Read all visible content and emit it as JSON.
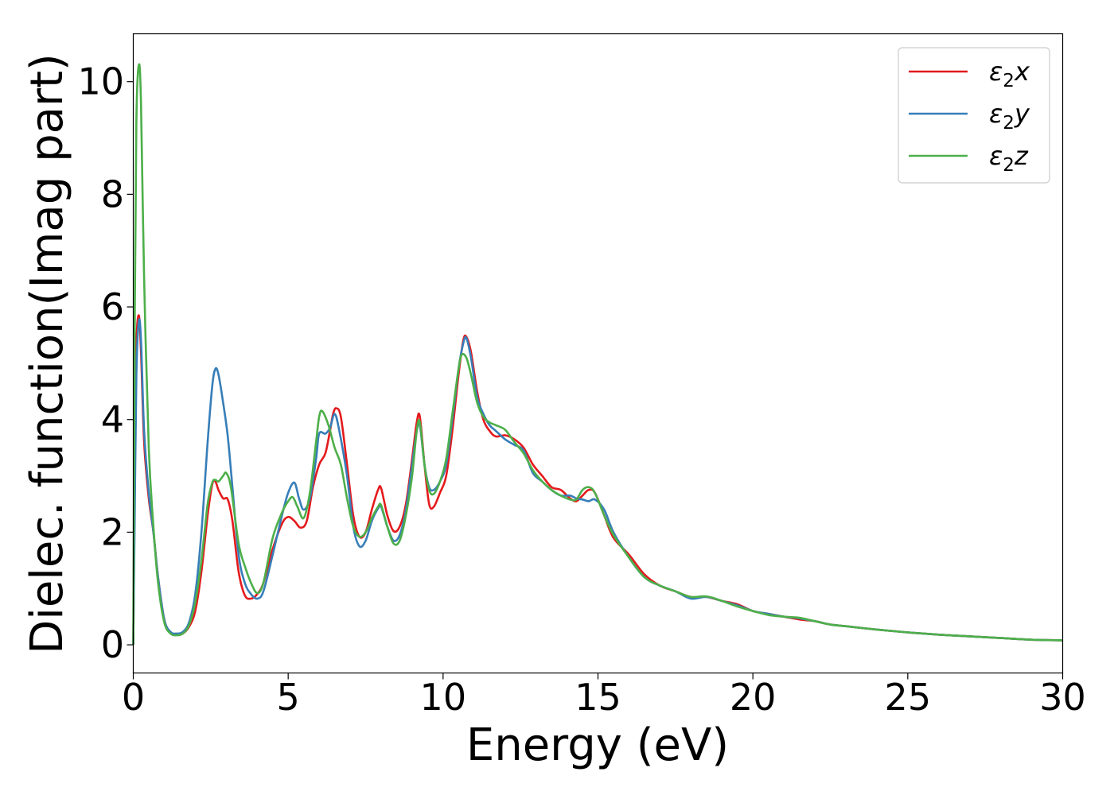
{
  "chart_data": {
    "type": "line",
    "title": "",
    "xlabel": "Energy (eV)",
    "ylabel": "Dielec. function(Imag part)",
    "xlim": [
      0,
      30
    ],
    "ylim": [
      -0.5,
      10.85
    ],
    "xticks": [
      0,
      5,
      10,
      15,
      20,
      25,
      30
    ],
    "yticks": [
      0,
      2,
      4,
      6,
      8,
      10
    ],
    "grid": false,
    "legend": {
      "placement": "top-right",
      "entries": [
        "ε2x",
        "ε2y",
        "ε2z"
      ]
    },
    "series": [
      {
        "name": "ε2x",
        "color": "#e41a1c",
        "points": [
          [
            0,
            0
          ],
          [
            0.05,
            3.0
          ],
          [
            0.1,
            5.3
          ],
          [
            0.18,
            5.85
          ],
          [
            0.25,
            5.2
          ],
          [
            0.35,
            3.6
          ],
          [
            0.5,
            2.6
          ],
          [
            0.65,
            2.0
          ],
          [
            0.8,
            1.2
          ],
          [
            1.0,
            0.45
          ],
          [
            1.2,
            0.22
          ],
          [
            1.4,
            0.18
          ],
          [
            1.6,
            0.2
          ],
          [
            1.8,
            0.32
          ],
          [
            2.0,
            0.6
          ],
          [
            2.2,
            1.3
          ],
          [
            2.4,
            2.3
          ],
          [
            2.55,
            2.85
          ],
          [
            2.65,
            2.9
          ],
          [
            2.75,
            2.75
          ],
          [
            2.9,
            2.6
          ],
          [
            3.05,
            2.58
          ],
          [
            3.2,
            2.2
          ],
          [
            3.4,
            1.3
          ],
          [
            3.6,
            0.88
          ],
          [
            3.8,
            0.82
          ],
          [
            4.0,
            0.9
          ],
          [
            4.2,
            1.1
          ],
          [
            4.5,
            1.7
          ],
          [
            4.8,
            2.15
          ],
          [
            5.0,
            2.27
          ],
          [
            5.2,
            2.2
          ],
          [
            5.4,
            2.08
          ],
          [
            5.6,
            2.2
          ],
          [
            5.8,
            2.8
          ],
          [
            6.0,
            3.2
          ],
          [
            6.2,
            3.4
          ],
          [
            6.35,
            3.8
          ],
          [
            6.45,
            4.1
          ],
          [
            6.55,
            4.2
          ],
          [
            6.7,
            4.05
          ],
          [
            6.9,
            3.2
          ],
          [
            7.1,
            2.3
          ],
          [
            7.3,
            1.92
          ],
          [
            7.5,
            2.0
          ],
          [
            7.7,
            2.4
          ],
          [
            7.9,
            2.75
          ],
          [
            8.0,
            2.78
          ],
          [
            8.2,
            2.3
          ],
          [
            8.4,
            2.02
          ],
          [
            8.6,
            2.1
          ],
          [
            8.8,
            2.5
          ],
          [
            9.0,
            3.3
          ],
          [
            9.15,
            3.95
          ],
          [
            9.25,
            4.05
          ],
          [
            9.4,
            3.2
          ],
          [
            9.55,
            2.5
          ],
          [
            9.7,
            2.45
          ],
          [
            9.9,
            2.7
          ],
          [
            10.1,
            3.0
          ],
          [
            10.3,
            3.8
          ],
          [
            10.5,
            4.8
          ],
          [
            10.65,
            5.4
          ],
          [
            10.75,
            5.47
          ],
          [
            10.9,
            5.2
          ],
          [
            11.1,
            4.5
          ],
          [
            11.3,
            4.0
          ],
          [
            11.5,
            3.8
          ],
          [
            11.7,
            3.7
          ],
          [
            12.0,
            3.72
          ],
          [
            12.3,
            3.65
          ],
          [
            12.6,
            3.5
          ],
          [
            12.9,
            3.2
          ],
          [
            13.2,
            3.0
          ],
          [
            13.5,
            2.8
          ],
          [
            13.8,
            2.75
          ],
          [
            14.1,
            2.6
          ],
          [
            14.3,
            2.55
          ],
          [
            14.5,
            2.65
          ],
          [
            14.7,
            2.75
          ],
          [
            14.9,
            2.7
          ],
          [
            15.2,
            2.3
          ],
          [
            15.5,
            1.9
          ],
          [
            16.0,
            1.6
          ],
          [
            16.5,
            1.25
          ],
          [
            17.0,
            1.05
          ],
          [
            17.5,
            0.95
          ],
          [
            18.0,
            0.85
          ],
          [
            18.5,
            0.85
          ],
          [
            19.0,
            0.78
          ],
          [
            19.5,
            0.72
          ],
          [
            20.0,
            0.6
          ],
          [
            20.5,
            0.55
          ],
          [
            21.0,
            0.5
          ],
          [
            21.5,
            0.45
          ],
          [
            22.0,
            0.42
          ],
          [
            22.5,
            0.36
          ],
          [
            23.0,
            0.33
          ],
          [
            24.0,
            0.27
          ],
          [
            25.0,
            0.22
          ],
          [
            26.0,
            0.18
          ],
          [
            27.0,
            0.15
          ],
          [
            28.0,
            0.12
          ],
          [
            29.0,
            0.09
          ],
          [
            30.0,
            0.08
          ]
        ]
      },
      {
        "name": "ε2y",
        "color": "#377eb8",
        "points": [
          [
            0,
            0
          ],
          [
            0.05,
            2.5
          ],
          [
            0.1,
            4.8
          ],
          [
            0.18,
            5.75
          ],
          [
            0.25,
            5.4
          ],
          [
            0.35,
            3.8
          ],
          [
            0.5,
            2.7
          ],
          [
            0.65,
            2.0
          ],
          [
            0.8,
            1.2
          ],
          [
            1.0,
            0.45
          ],
          [
            1.2,
            0.23
          ],
          [
            1.4,
            0.2
          ],
          [
            1.6,
            0.23
          ],
          [
            1.8,
            0.4
          ],
          [
            2.0,
            0.9
          ],
          [
            2.2,
            2.0
          ],
          [
            2.4,
            3.6
          ],
          [
            2.55,
            4.6
          ],
          [
            2.65,
            4.9
          ],
          [
            2.75,
            4.8
          ],
          [
            2.9,
            4.3
          ],
          [
            3.05,
            3.7
          ],
          [
            3.2,
            2.8
          ],
          [
            3.4,
            1.6
          ],
          [
            3.6,
            1.1
          ],
          [
            3.8,
            0.9
          ],
          [
            4.0,
            0.82
          ],
          [
            4.2,
            0.95
          ],
          [
            4.5,
            1.6
          ],
          [
            4.8,
            2.3
          ],
          [
            5.0,
            2.7
          ],
          [
            5.2,
            2.88
          ],
          [
            5.35,
            2.6
          ],
          [
            5.5,
            2.4
          ],
          [
            5.7,
            2.6
          ],
          [
            5.9,
            3.3
          ],
          [
            6.0,
            3.75
          ],
          [
            6.2,
            3.75
          ],
          [
            6.35,
            3.85
          ],
          [
            6.5,
            4.1
          ],
          [
            6.65,
            3.8
          ],
          [
            6.9,
            3.0
          ],
          [
            7.1,
            2.1
          ],
          [
            7.3,
            1.75
          ],
          [
            7.5,
            1.85
          ],
          [
            7.7,
            2.2
          ],
          [
            7.9,
            2.42
          ],
          [
            8.0,
            2.45
          ],
          [
            8.2,
            2.1
          ],
          [
            8.4,
            1.85
          ],
          [
            8.6,
            1.95
          ],
          [
            8.8,
            2.4
          ],
          [
            9.0,
            3.2
          ],
          [
            9.15,
            3.8
          ],
          [
            9.25,
            3.9
          ],
          [
            9.4,
            3.2
          ],
          [
            9.55,
            2.8
          ],
          [
            9.7,
            2.75
          ],
          [
            9.9,
            2.9
          ],
          [
            10.1,
            3.2
          ],
          [
            10.3,
            4.0
          ],
          [
            10.5,
            4.9
          ],
          [
            10.65,
            5.35
          ],
          [
            10.75,
            5.45
          ],
          [
            10.9,
            5.1
          ],
          [
            11.1,
            4.4
          ],
          [
            11.3,
            4.1
          ],
          [
            11.5,
            3.9
          ],
          [
            11.7,
            3.8
          ],
          [
            12.0,
            3.65
          ],
          [
            12.3,
            3.55
          ],
          [
            12.6,
            3.45
          ],
          [
            12.9,
            3.05
          ],
          [
            13.2,
            2.9
          ],
          [
            13.5,
            2.75
          ],
          [
            13.8,
            2.65
          ],
          [
            14.1,
            2.65
          ],
          [
            14.3,
            2.6
          ],
          [
            14.5,
            2.58
          ],
          [
            14.7,
            2.55
          ],
          [
            14.9,
            2.58
          ],
          [
            15.2,
            2.4
          ],
          [
            15.5,
            2.0
          ],
          [
            16.0,
            1.55
          ],
          [
            16.5,
            1.2
          ],
          [
            17.0,
            1.05
          ],
          [
            17.5,
            0.95
          ],
          [
            18.0,
            0.82
          ],
          [
            18.5,
            0.85
          ],
          [
            19.0,
            0.78
          ],
          [
            19.5,
            0.7
          ],
          [
            20.0,
            0.6
          ],
          [
            20.5,
            0.55
          ],
          [
            21.0,
            0.5
          ],
          [
            21.5,
            0.47
          ],
          [
            22.0,
            0.42
          ],
          [
            22.5,
            0.36
          ],
          [
            23.0,
            0.33
          ],
          [
            24.0,
            0.27
          ],
          [
            25.0,
            0.22
          ],
          [
            26.0,
            0.18
          ],
          [
            27.0,
            0.15
          ],
          [
            28.0,
            0.12
          ],
          [
            29.0,
            0.09
          ],
          [
            30.0,
            0.08
          ]
        ]
      },
      {
        "name": "ε2z",
        "color": "#4daf4a",
        "points": [
          [
            0,
            0
          ],
          [
            0.05,
            6.0
          ],
          [
            0.1,
            9.3
          ],
          [
            0.18,
            10.3
          ],
          [
            0.25,
            9.6
          ],
          [
            0.35,
            6.5
          ],
          [
            0.5,
            3.5
          ],
          [
            0.65,
            2.1
          ],
          [
            0.8,
            1.1
          ],
          [
            1.0,
            0.4
          ],
          [
            1.2,
            0.2
          ],
          [
            1.4,
            0.17
          ],
          [
            1.6,
            0.2
          ],
          [
            1.8,
            0.35
          ],
          [
            2.0,
            0.75
          ],
          [
            2.2,
            1.5
          ],
          [
            2.4,
            2.5
          ],
          [
            2.55,
            2.88
          ],
          [
            2.65,
            2.93
          ],
          [
            2.75,
            2.9
          ],
          [
            2.9,
            3.0
          ],
          [
            3.0,
            3.05
          ],
          [
            3.15,
            2.8
          ],
          [
            3.4,
            1.8
          ],
          [
            3.6,
            1.4
          ],
          [
            3.8,
            1.1
          ],
          [
            4.0,
            0.92
          ],
          [
            4.2,
            1.1
          ],
          [
            4.5,
            1.9
          ],
          [
            4.8,
            2.35
          ],
          [
            5.0,
            2.55
          ],
          [
            5.15,
            2.62
          ],
          [
            5.3,
            2.45
          ],
          [
            5.5,
            2.25
          ],
          [
            5.7,
            2.7
          ],
          [
            5.9,
            3.6
          ],
          [
            6.0,
            4.05
          ],
          [
            6.1,
            4.15
          ],
          [
            6.3,
            3.9
          ],
          [
            6.5,
            3.5
          ],
          [
            6.7,
            3.2
          ],
          [
            6.9,
            2.6
          ],
          [
            7.1,
            2.1
          ],
          [
            7.3,
            1.92
          ],
          [
            7.5,
            2.0
          ],
          [
            7.7,
            2.25
          ],
          [
            7.9,
            2.45
          ],
          [
            8.0,
            2.48
          ],
          [
            8.2,
            2.1
          ],
          [
            8.4,
            1.8
          ],
          [
            8.6,
            1.85
          ],
          [
            8.8,
            2.3
          ],
          [
            9.0,
            3.0
          ],
          [
            9.15,
            3.8
          ],
          [
            9.25,
            3.95
          ],
          [
            9.4,
            3.2
          ],
          [
            9.55,
            2.75
          ],
          [
            9.7,
            2.68
          ],
          [
            9.9,
            2.9
          ],
          [
            10.1,
            3.3
          ],
          [
            10.3,
            4.1
          ],
          [
            10.5,
            4.9
          ],
          [
            10.6,
            5.15
          ],
          [
            10.75,
            5.1
          ],
          [
            10.9,
            4.8
          ],
          [
            11.1,
            4.3
          ],
          [
            11.3,
            4.05
          ],
          [
            11.5,
            3.95
          ],
          [
            11.7,
            3.9
          ],
          [
            12.0,
            3.82
          ],
          [
            12.3,
            3.6
          ],
          [
            12.6,
            3.4
          ],
          [
            12.9,
            3.1
          ],
          [
            13.2,
            2.9
          ],
          [
            13.5,
            2.75
          ],
          [
            13.8,
            2.65
          ],
          [
            14.1,
            2.58
          ],
          [
            14.3,
            2.58
          ],
          [
            14.5,
            2.75
          ],
          [
            14.7,
            2.8
          ],
          [
            14.9,
            2.7
          ],
          [
            15.2,
            2.3
          ],
          [
            15.5,
            1.95
          ],
          [
            16.0,
            1.55
          ],
          [
            16.5,
            1.2
          ],
          [
            17.0,
            1.05
          ],
          [
            17.5,
            0.95
          ],
          [
            18.0,
            0.85
          ],
          [
            18.5,
            0.86
          ],
          [
            19.0,
            0.78
          ],
          [
            19.5,
            0.68
          ],
          [
            20.0,
            0.6
          ],
          [
            20.5,
            0.53
          ],
          [
            21.0,
            0.5
          ],
          [
            21.5,
            0.48
          ],
          [
            22.0,
            0.42
          ],
          [
            22.5,
            0.36
          ],
          [
            23.0,
            0.33
          ],
          [
            24.0,
            0.27
          ],
          [
            25.0,
            0.22
          ],
          [
            26.0,
            0.18
          ],
          [
            27.0,
            0.15
          ],
          [
            28.0,
            0.12
          ],
          [
            29.0,
            0.09
          ],
          [
            30.0,
            0.08
          ]
        ]
      }
    ]
  }
}
